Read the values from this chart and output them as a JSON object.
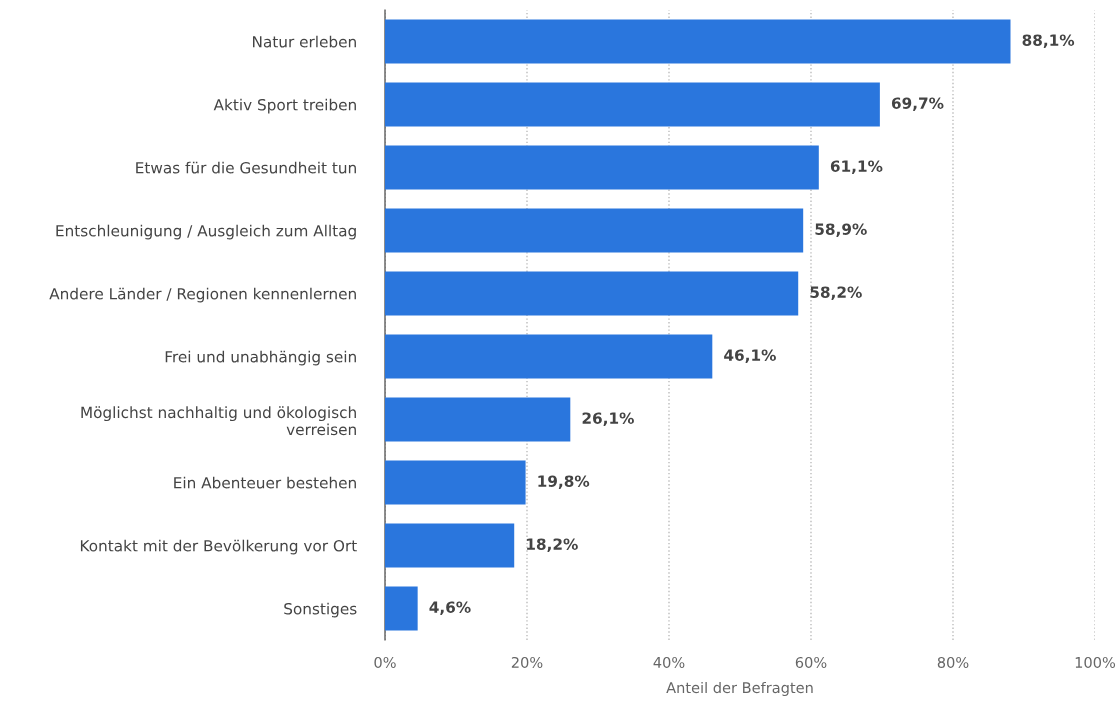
{
  "chart_data": {
    "type": "bar",
    "orientation": "horizontal",
    "xlabel": "Anteil der Befragten",
    "categories": [
      "Natur erleben",
      "Aktiv Sport treiben",
      "Etwas für die Gesundheit tun",
      "Entschleunigung / Ausgleich zum Alltag",
      "Andere Länder / Regionen kennenlernen",
      "Frei und unabhängig sein",
      "Möglichst nachhaltig und ökologisch\nverreisen",
      "Ein Abenteuer bestehen",
      "Kontakt mit der Bevölkerung vor Ort",
      "Sonstiges"
    ],
    "values": [
      88.1,
      69.7,
      61.1,
      58.9,
      58.2,
      46.1,
      26.1,
      19.8,
      18.2,
      4.6
    ],
    "value_labels": [
      "88,1%",
      "69,7%",
      "61,1%",
      "58,9%",
      "58,2%",
      "46,1%",
      "26,1%",
      "19,8%",
      "18,2%",
      "4,6%"
    ],
    "color": "#2a76dd",
    "xlim": [
      0,
      100
    ],
    "xticks": [
      {
        "value": 0,
        "label": "0%"
      },
      {
        "value": 20,
        "label": "20%"
      },
      {
        "value": 40,
        "label": "40%"
      },
      {
        "value": 60,
        "label": "60%"
      },
      {
        "value": 80,
        "label": "80%"
      },
      {
        "value": 100,
        "label": "100%"
      }
    ],
    "grid": "x"
  }
}
